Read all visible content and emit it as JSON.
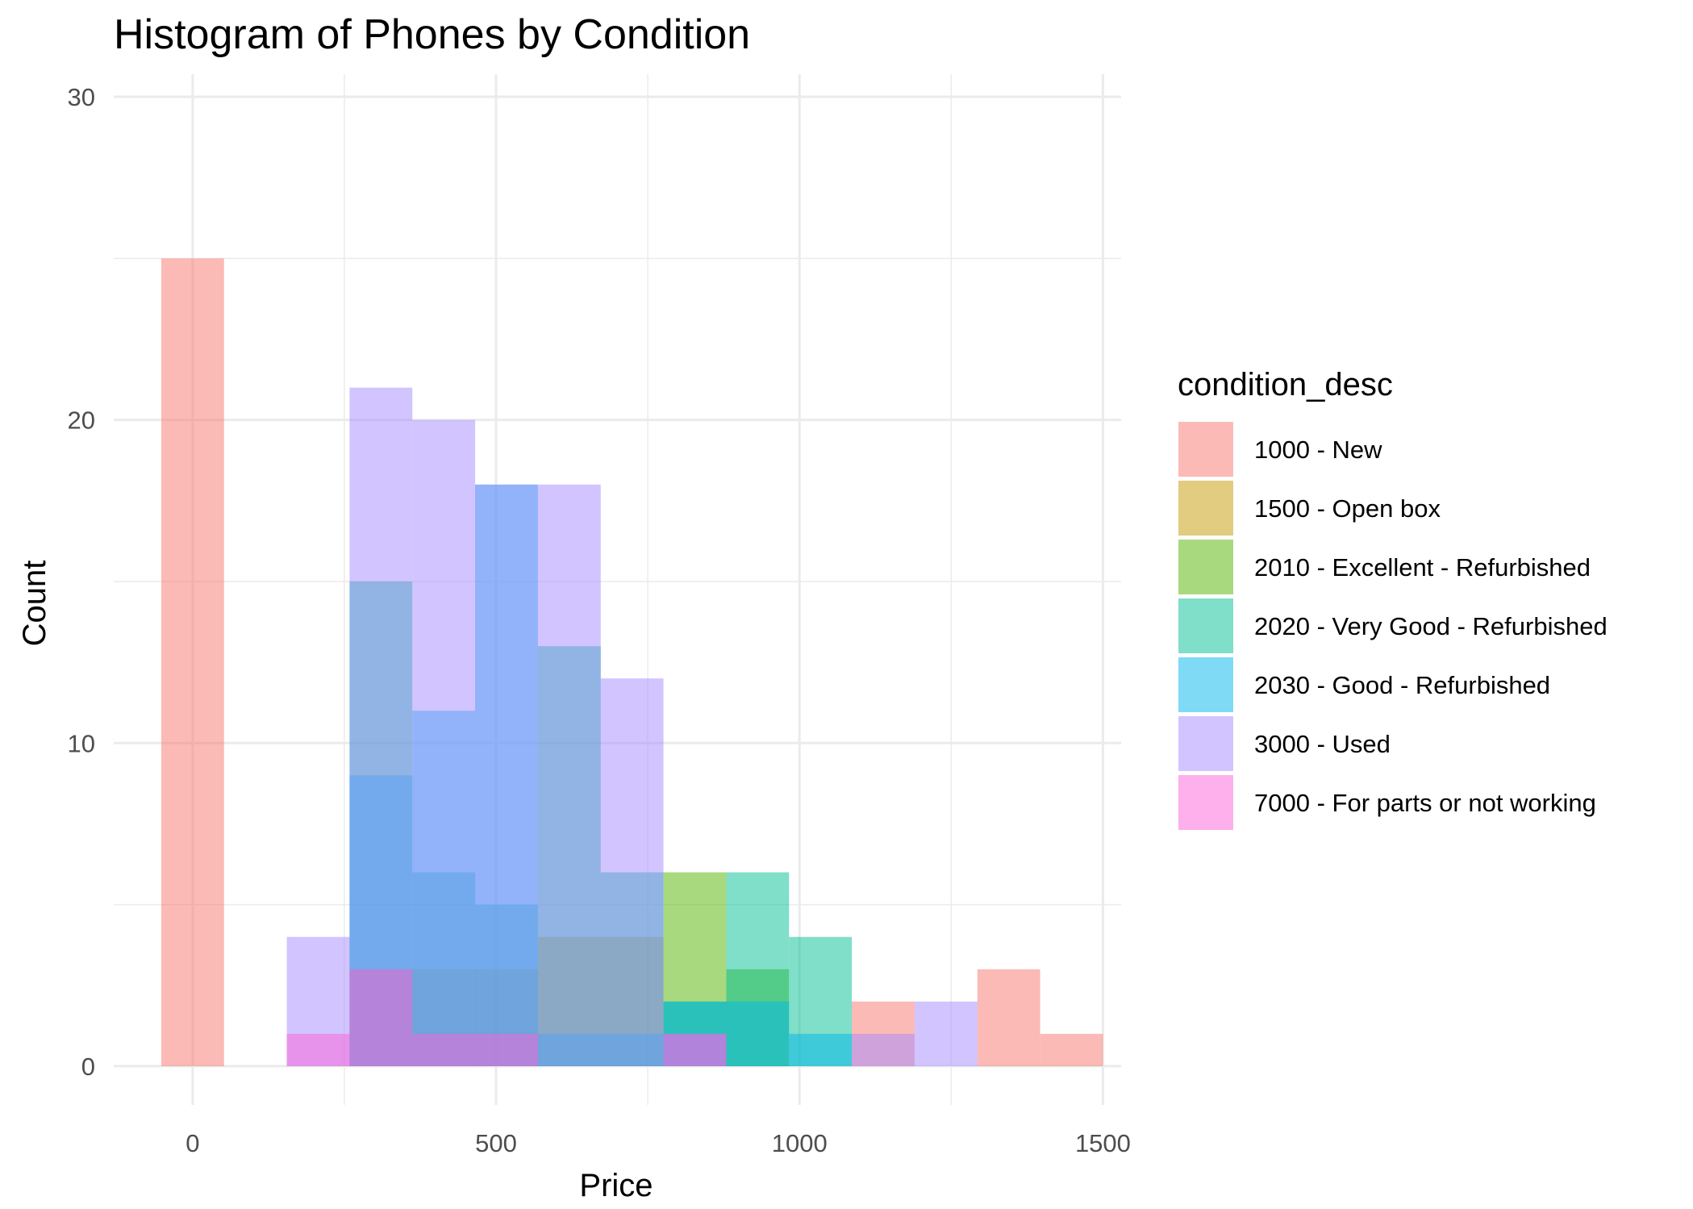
{
  "chart_data": {
    "type": "bar",
    "subtype": "histogram-overlaid",
    "title": "Histogram of Phones by Condition",
    "xlabel": "Price",
    "ylabel": "Count",
    "xlim": [
      -130,
      1530
    ],
    "ylim": [
      -1.2,
      30.7
    ],
    "x_ticks": [
      0,
      500,
      1000,
      1500
    ],
    "y_ticks": [
      0,
      10,
      20,
      30
    ],
    "grid": true,
    "bar_opacity": 0.5,
    "bin_width": 103.45,
    "bin_starts": [
      -51.7,
      51.7,
      155.2,
      258.6,
      362.1,
      465.5,
      569.0,
      672.4,
      775.9,
      879.3,
      982.8,
      1086.2,
      1189.7,
      1293.1,
      1396.6
    ],
    "legend_title": "condition_desc",
    "legend_position": "right",
    "series": [
      {
        "name": "1000 - New",
        "color": "#F8766D",
        "values": [
          25,
          0,
          0,
          0,
          0,
          0,
          0,
          0,
          0,
          0,
          0,
          2,
          0,
          3,
          1
        ]
      },
      {
        "name": "1500 - Open box",
        "color": "#C49A00",
        "values": [
          0,
          0,
          0,
          3,
          3,
          3,
          4,
          4,
          0,
          0,
          0,
          0,
          0,
          0,
          0
        ]
      },
      {
        "name": "2010 - Excellent - Refurbished",
        "color": "#53B400",
        "values": [
          0,
          0,
          0,
          0,
          0,
          0,
          0,
          0,
          6,
          3,
          0,
          0,
          0,
          0,
          0
        ]
      },
      {
        "name": "2020 - Very Good - Refurbished",
        "color": "#00C094",
        "values": [
          0,
          0,
          0,
          15,
          6,
          5,
          13,
          6,
          2,
          6,
          4,
          0,
          0,
          0,
          0
        ]
      },
      {
        "name": "2030 - Good - Refurbished",
        "color": "#00B6EB",
        "values": [
          0,
          0,
          0,
          9,
          11,
          18,
          1,
          1,
          2,
          2,
          1,
          0,
          0,
          0,
          0
        ]
      },
      {
        "name": "3000 - Used",
        "color": "#A58AFF",
        "values": [
          0,
          0,
          4,
          21,
          20,
          18,
          18,
          12,
          1,
          0,
          0,
          1,
          2,
          0,
          0
        ]
      },
      {
        "name": "7000 - For parts or not working",
        "color": "#FB61D7",
        "values": [
          0,
          0,
          1,
          3,
          1,
          1,
          0,
          0,
          1,
          0,
          0,
          0,
          0,
          0,
          0
        ]
      }
    ]
  }
}
